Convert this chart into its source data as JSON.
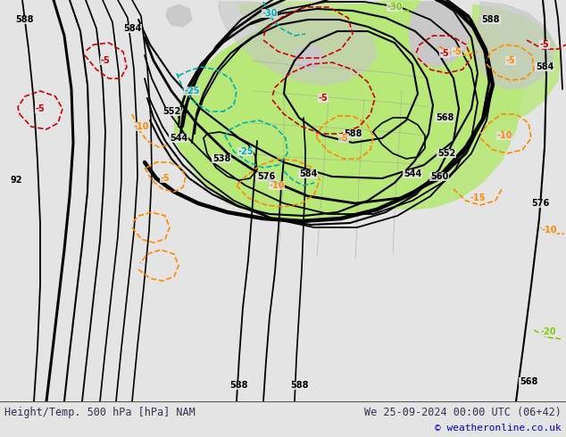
{
  "title_left": "Height/Temp. 500 hPa [hPa] NAM",
  "title_right": "We 25-09-2024 00:00 UTC (06+42)",
  "copyright": "© weatheronline.co.uk",
  "bg_color": "#e4e4e4",
  "ocean_color": "#e4e4e4",
  "land_color": "#c8c8c8",
  "green_color": "#b8e878",
  "fig_width": 6.34,
  "fig_height": 4.9,
  "dpi": 100,
  "title_fontsize": 8.5,
  "copyright_fontsize": 8,
  "copyright_color": "#0000cc",
  "label_fontsize": 7
}
